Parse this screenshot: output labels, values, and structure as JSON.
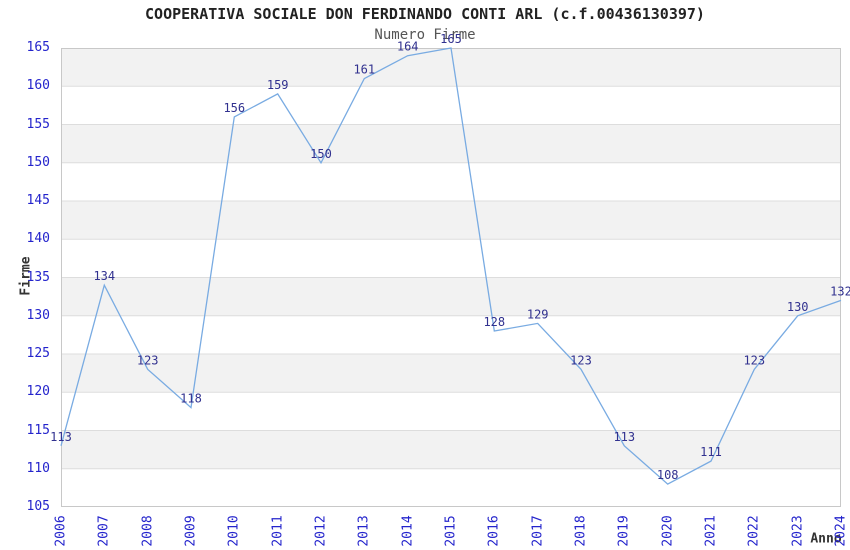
{
  "title": "COOPERATIVA SOCIALE DON FERDINANDO CONTI ARL (c.f.00436130397)",
  "subtitle": "Numero Firme",
  "chart_data": {
    "type": "line",
    "title": "COOPERATIVA SOCIALE DON FERDINANDO CONTI ARL (c.f.00436130397)",
    "subtitle": "Numero Firme",
    "xlabel": "Anno",
    "ylabel": "Firme",
    "x": [
      2006,
      2007,
      2008,
      2009,
      2010,
      2011,
      2012,
      2013,
      2014,
      2015,
      2016,
      2017,
      2018,
      2019,
      2020,
      2021,
      2022,
      2023,
      2024
    ],
    "series": [
      {
        "name": "Numero Firme",
        "values": [
          113,
          134,
          123,
          118,
          156,
          159,
          150,
          161,
          164,
          165,
          128,
          129,
          123,
          113,
          108,
          111,
          123,
          130,
          132
        ]
      }
    ],
    "data_labels_shown": true,
    "ylim": [
      105,
      165
    ],
    "ytick_step": 5,
    "grid": "horizontal",
    "banded_background": true,
    "legend": "none",
    "colors": {
      "line": "#79ABE2",
      "data_label": "#31318F",
      "tick_label": "#2424CC",
      "band": "#F2F2F2",
      "gridline": "#DDDDDD",
      "plot_border": "#C8C8C8",
      "title": "#222222",
      "subtitle": "#555555",
      "axis_title": "#333333"
    }
  }
}
